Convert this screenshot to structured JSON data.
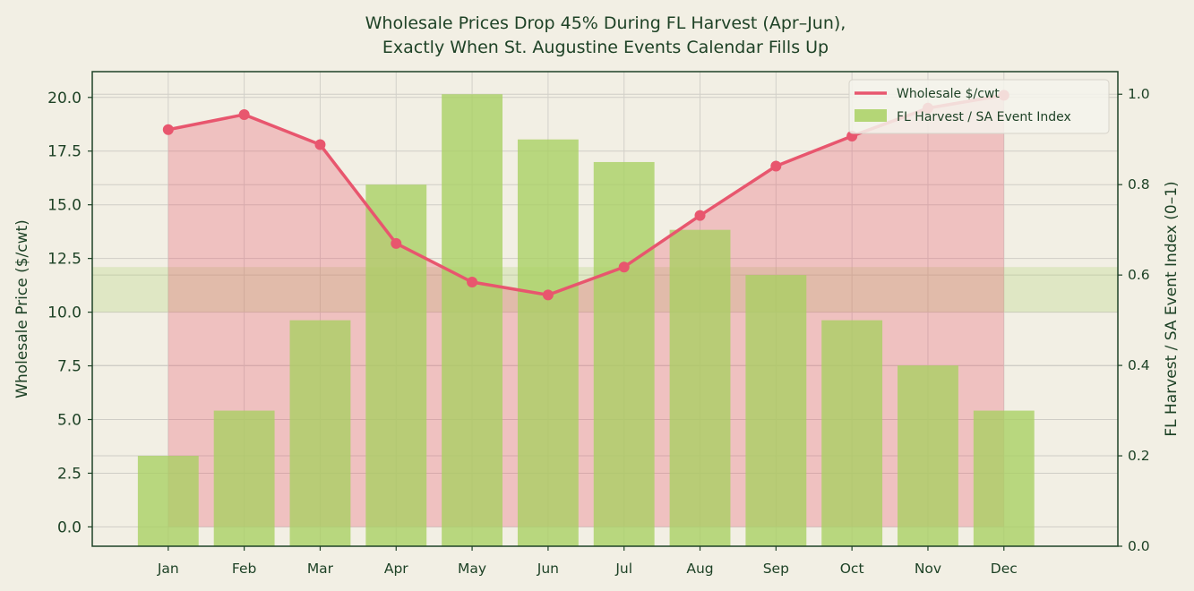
{
  "chart_data": {
    "type": "bar",
    "title_lines": [
      "Wholesale Prices Drop 45% During FL Harvest (Apr–Jun),",
      "Exactly When St. Augustine Events Calendar Fills Up"
    ],
    "categories": [
      "Jan",
      "Feb",
      "Mar",
      "Apr",
      "May",
      "Jun",
      "Jul",
      "Aug",
      "Sep",
      "Oct",
      "Nov",
      "Dec"
    ],
    "series": [
      {
        "name": "Wholesale $/cwt",
        "type": "line",
        "axis": "left",
        "color": "#e8566e",
        "fill": "area",
        "values": [
          18.5,
          19.2,
          17.8,
          13.2,
          11.4,
          10.8,
          12.1,
          14.5,
          16.8,
          18.2,
          19.5,
          20.1
        ]
      },
      {
        "name": "FL Harvest / SA Event Index",
        "type": "bar",
        "axis": "right",
        "color": "#a8d062",
        "values": [
          0.2,
          0.3,
          0.5,
          0.8,
          1.0,
          0.9,
          0.85,
          0.7,
          0.6,
          0.5,
          0.4,
          0.3
        ]
      }
    ],
    "ylabel": "Wholesale Price ($/cwt)",
    "ylabel_right": "FL Harvest / SA Event Index (0–1)",
    "ylim": [
      -0.9,
      21.2
    ],
    "ylim_right": [
      0,
      1.05
    ],
    "yticks": [
      "0.0",
      "2.5",
      "5.0",
      "7.5",
      "10.0",
      "12.5",
      "15.0",
      "17.5",
      "20.0"
    ],
    "yticks_right": [
      "0.0",
      "0.2",
      "0.4",
      "0.6",
      "0.8",
      "1.0"
    ],
    "highlight_band": [
      10.0,
      12.1
    ],
    "grid": true,
    "legend_position": "top-right"
  }
}
